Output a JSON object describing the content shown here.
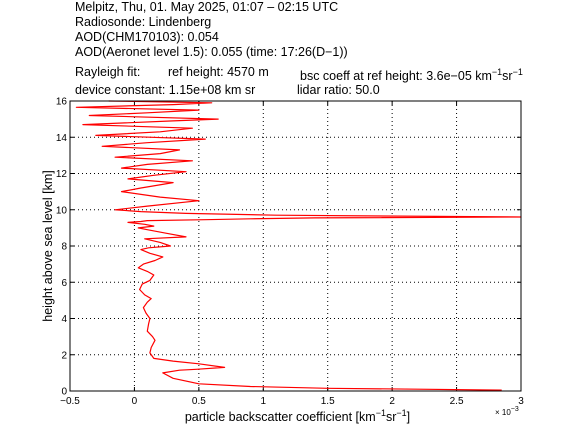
{
  "header": {
    "line1": "Melpitz, Thu, 01. May 2025, 01:07 – 02:15 UTC",
    "line2": "Radiosonde: Lindenberg",
    "line3": "AOD(CHM170103): 0.054",
    "line4": "AOD(Aeronet level 1.5): 0.055   (time: 17:26(D−1))",
    "rayleigh_fit_label": "Rayleigh fit:",
    "ref_height": "ref height: 4570 m",
    "bsc_coeff_prefix": "bsc coeff at ref height: 3.6e−05 km",
    "bsc_coeff_exp1": "−1",
    "bsc_coeff_mid": "sr",
    "bsc_coeff_exp2": "−1",
    "device_constant": "device constant: 1.15e+08 km sr",
    "lidar_ratio": "lidar ratio: 50.0"
  },
  "chart_data": {
    "type": "line",
    "xlabel_main": "particle backscatter coefficient [km",
    "xlabel_exp1": "−1",
    "xlabel_mid": "sr",
    "xlabel_exp2": "−1",
    "xlabel_end": "]",
    "ylabel": "height above sea level [km]",
    "x_multiplier_label": "× 10",
    "x_multiplier_exp": "−3",
    "xlim": [
      -0.5,
      3
    ],
    "ylim": [
      0,
      16
    ],
    "x_ticks": [
      -0.5,
      0,
      0.5,
      1,
      1.5,
      2,
      2.5,
      3
    ],
    "x_tick_labels": [
      "−0.5",
      "0",
      "0.5",
      "1",
      "1.5",
      "2",
      "2.5",
      "3"
    ],
    "y_ticks": [
      0,
      2,
      4,
      6,
      8,
      10,
      12,
      14,
      16
    ],
    "y_tick_labels": [
      "0",
      "2",
      "4",
      "6",
      "8",
      "10",
      "12",
      "14",
      "16"
    ],
    "grid": true,
    "line_color": "#ff0000",
    "series": [
      {
        "x_unit": "1e-3 km^-1 sr^-1",
        "x": [
          2.85,
          2.2,
          1.5,
          0.9,
          0.5,
          0.3,
          0.22,
          0.35,
          0.48,
          0.7,
          0.5,
          0.3,
          0.15,
          0.12,
          0.13,
          0.16,
          0.14,
          0.1,
          0.11,
          0.12,
          0.09,
          0.07,
          0.1,
          0.13,
          0.08,
          0.04,
          0.06,
          0.12,
          0.15,
          0.1,
          0.03,
          0.07,
          0.16,
          0.22,
          0.12,
          0.05,
          0.11,
          0.28,
          0.2,
          0.08,
          0.4,
          0.25,
          0.1,
          0.03,
          0.15,
          0.08,
          -0.05,
          0.05,
          0.1,
          0.55,
          0.9,
          1.4,
          3.1,
          1.1,
          0.4,
          0.05,
          -0.15,
          0.1,
          0.5,
          0.2,
          -0.1,
          0.05,
          0.3,
          -0.05,
          0.15,
          0.4,
          -0.1,
          0.1,
          0.45,
          -0.15,
          0.2,
          0.35,
          -0.25,
          0.1,
          0.55,
          -0.3,
          0.2,
          0.45,
          -0.4,
          0.3,
          0.65,
          -0.35,
          0.1,
          0.5,
          -0.45,
          0.3,
          0.6,
          -0.2
        ],
        "y": [
          0.05,
          0.1,
          0.15,
          0.25,
          0.4,
          0.7,
          1.0,
          1.15,
          1.2,
          1.3,
          1.5,
          1.65,
          1.8,
          2.1,
          2.4,
          2.8,
          3.0,
          3.3,
          3.7,
          4.0,
          4.3,
          4.6,
          4.9,
          5.1,
          5.3,
          5.6,
          5.9,
          6.1,
          6.4,
          6.6,
          6.8,
          7.0,
          7.2,
          7.4,
          7.6,
          7.8,
          7.9,
          8.0,
          8.2,
          8.4,
          8.5,
          8.7,
          8.9,
          9.0,
          9.1,
          9.2,
          9.3,
          9.35,
          9.4,
          9.45,
          9.5,
          9.55,
          9.6,
          9.7,
          9.8,
          9.9,
          10.0,
          10.2,
          10.5,
          10.7,
          11.0,
          11.2,
          11.5,
          11.7,
          11.9,
          12.1,
          12.3,
          12.5,
          12.7,
          12.9,
          13.1,
          13.3,
          13.5,
          13.7,
          13.9,
          14.1,
          14.3,
          14.5,
          14.7,
          14.9,
          15.0,
          15.2,
          15.35,
          15.5,
          15.65,
          15.8,
          15.9,
          16.0
        ]
      }
    ]
  }
}
